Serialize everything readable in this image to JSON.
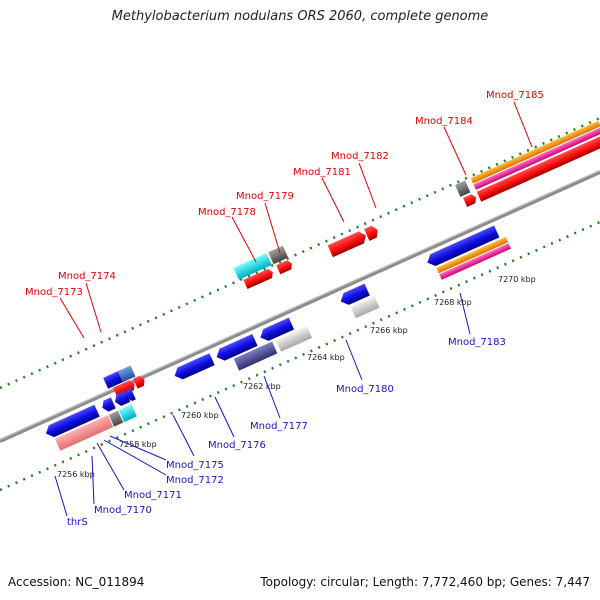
{
  "title": "Methylobacterium nodulans ORS 2060, complete genome",
  "footer": {
    "accession": "Accession: NC_011894",
    "summary": "Topology: circular; Length: 7,772,460 bp; Genes: 7,447"
  },
  "scale_ticks": [
    {
      "label": "7256 kbp"
    },
    {
      "label": "7258 kbp"
    },
    {
      "label": "7260 kbp"
    },
    {
      "label": "7262 kbp"
    },
    {
      "label": "7264 kbp"
    },
    {
      "label": "7266 kbp"
    },
    {
      "label": "7268 kbp"
    },
    {
      "label": "7270 kbp"
    }
  ],
  "genes_forward_strand_labels": [
    {
      "label": "Mnod_7173"
    },
    {
      "label": "Mnod_7174"
    },
    {
      "label": "Mnod_7178"
    },
    {
      "label": "Mnod_7179"
    },
    {
      "label": "Mnod_7181"
    },
    {
      "label": "Mnod_7182"
    },
    {
      "label": "Mnod_7184"
    },
    {
      "label": "Mnod_7185"
    }
  ],
  "genes_reverse_strand_labels": [
    {
      "label": "thrS"
    },
    {
      "label": "Mnod_7170"
    },
    {
      "label": "Mnod_7171"
    },
    {
      "label": "Mnod_7172"
    },
    {
      "label": "Mnod_7175"
    },
    {
      "label": "Mnod_7176"
    },
    {
      "label": "Mnod_7177"
    },
    {
      "label": "Mnod_7180"
    },
    {
      "label": "Mnod_7183"
    }
  ],
  "colors": {
    "cds_blue": "#1010e0",
    "rna_red": "#ff1010",
    "backbone_gray": "#8c8c8c",
    "label_red": "#e00000",
    "label_blue": "#1414c8",
    "dots_green": "#208020"
  }
}
